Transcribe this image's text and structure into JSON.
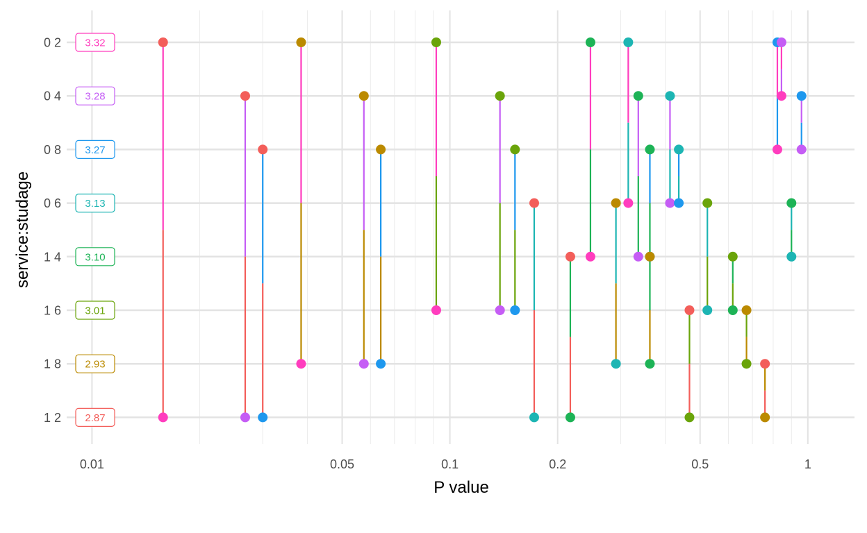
{
  "chart_data": {
    "type": "dumbbell",
    "xlabel": "P value",
    "ylabel": "service:studage",
    "x_scale": "log10",
    "x_range": [
      0.0085,
      1.35
    ],
    "x_ticks": [
      {
        "value": 0.01,
        "label": "0.01"
      },
      {
        "value": 0.05,
        "label": "0.05"
      },
      {
        "value": 0.1,
        "label": "0.1"
      },
      {
        "value": 0.2,
        "label": "0.2"
      },
      {
        "value": 0.5,
        "label": "0.5"
      },
      {
        "value": 1,
        "label": "1"
      }
    ],
    "x_minor_grid": [
      0.02,
      0.03,
      0.04,
      0.06,
      0.07,
      0.08,
      0.09,
      0.3,
      0.4,
      0.6,
      0.7,
      0.8,
      0.9
    ],
    "grid": true,
    "groups": [
      {
        "key": "0 2",
        "label": "0 2",
        "mean": "3.32",
        "color": "#FF3DBE"
      },
      {
        "key": "0 4",
        "label": "0 4",
        "mean": "3.28",
        "color": "#C55DF5"
      },
      {
        "key": "0 8",
        "label": "0 8",
        "mean": "3.27",
        "color": "#1E98EE"
      },
      {
        "key": "0 6",
        "label": "0 6",
        "mean": "3.13",
        "color": "#1DB5B3"
      },
      {
        "key": "1 4",
        "label": "1 4",
        "mean": "3.10",
        "color": "#1DB356"
      },
      {
        "key": "1 6",
        "label": "1 6",
        "mean": "3.01",
        "color": "#6AA40A"
      },
      {
        "key": "1 8",
        "label": "1 8",
        "mean": "2.93",
        "color": "#BB8A00"
      },
      {
        "key": "1 2",
        "label": "1 2",
        "mean": "2.87",
        "color": "#F35E5A"
      }
    ],
    "comparisons": [
      {
        "from": "0 2",
        "to": "1 2",
        "p": 0.0158
      },
      {
        "from": "0 4",
        "to": "1 2",
        "p": 0.0268
      },
      {
        "from": "0 8",
        "to": "1 2",
        "p": 0.03
      },
      {
        "from": "0 2",
        "to": "1 8",
        "p": 0.0384
      },
      {
        "from": "0 4",
        "to": "1 8",
        "p": 0.0575
      },
      {
        "from": "0 8",
        "to": "1 8",
        "p": 0.0641
      },
      {
        "from": "0 2",
        "to": "1 6",
        "p": 0.0916
      },
      {
        "from": "0 4",
        "to": "1 6",
        "p": 0.138
      },
      {
        "from": "0 8",
        "to": "1 6",
        "p": 0.152
      },
      {
        "from": "0 6",
        "to": "1 2",
        "p": 0.172
      },
      {
        "from": "1 4",
        "to": "1 2",
        "p": 0.217
      },
      {
        "from": "0 2",
        "to": "1 4",
        "p": 0.247
      },
      {
        "from": "0 6",
        "to": "1 8",
        "p": 0.291
      },
      {
        "from": "0 2",
        "to": "0 6",
        "p": 0.315
      },
      {
        "from": "0 4",
        "to": "1 4",
        "p": 0.336
      },
      {
        "from": "0 8",
        "to": "1 4",
        "p": 0.362
      },
      {
        "from": "1 4",
        "to": "1 8",
        "p": 0.362
      },
      {
        "from": "0 4",
        "to": "0 6",
        "p": 0.412
      },
      {
        "from": "0 8",
        "to": "0 6",
        "p": 0.436
      },
      {
        "from": "1 6",
        "to": "1 2",
        "p": 0.467
      },
      {
        "from": "0 6",
        "to": "1 6",
        "p": 0.524
      },
      {
        "from": "1 4",
        "to": "1 6",
        "p": 0.617
      },
      {
        "from": "1 6",
        "to": "1 8",
        "p": 0.674
      },
      {
        "from": "1 8",
        "to": "1 2",
        "p": 0.759
      },
      {
        "from": "0 2",
        "to": "0 8",
        "p": 0.822
      },
      {
        "from": "0 2",
        "to": "0 4",
        "p": 0.844
      },
      {
        "from": "0 4",
        "to": "0 8",
        "p": 0.96
      },
      {
        "from": "0 6",
        "to": "1 4",
        "p": 0.9
      }
    ]
  }
}
